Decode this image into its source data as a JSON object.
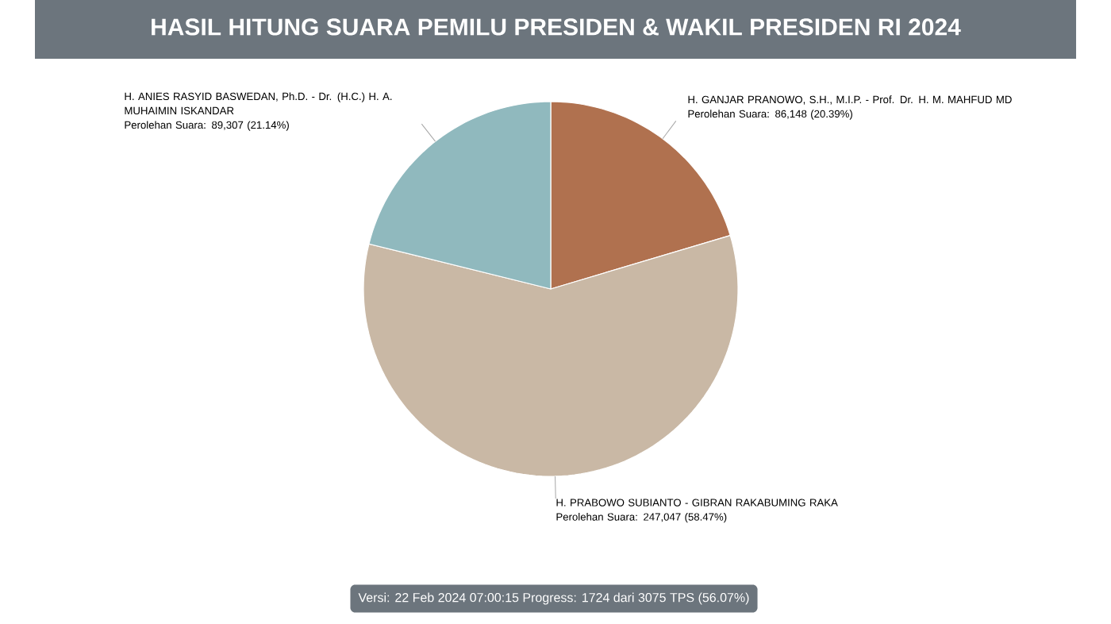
{
  "chart_data": {
    "type": "pie",
    "title": "HASIL HITUNG SUARA PEMILU PRESIDEN & WAKIL PRESIDEN RI 2024",
    "categories": [
      "H. GANJAR PRANOWO, S.H., M.I.P. - Prof. Dr. H. M. MAHFUD MD",
      "H. PRABOWO SUBIANTO - GIBRAN RAKABUMING RAKA",
      "H. ANIES RASYID BASWEDAN, Ph.D. - Dr. (H.C.) H. A. MUHAIMIN ISKANDAR"
    ],
    "values": [
      86148,
      247047,
      89307
    ],
    "colors": [
      "#b0714f",
      "#c9b8a5",
      "#90b9be"
    ],
    "value_labels": [
      "Perolehan Suara: 86,148 (20.39%)",
      "Perolehan Suara: 247,047 (58.47%)",
      "Perolehan Suara: 89,307 (21.14%)"
    ],
    "annotations": [
      "Versi: 22 Feb 2024 07:00:15 Progress: 1724 dari 3075 TPS (56.07%)"
    ]
  }
}
